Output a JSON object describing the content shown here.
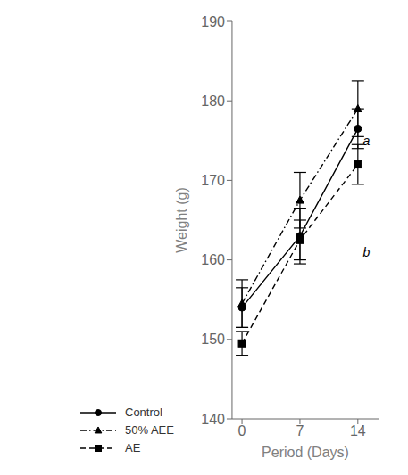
{
  "chart_data": {
    "type": "line",
    "x": [
      0,
      7,
      14
    ],
    "series": [
      {
        "name": "Control",
        "color": "#000000",
        "marker": "circle",
        "line_style": "solid",
        "values": [
          154.0,
          163.0,
          176.5
        ],
        "errors": [
          2.5,
          3.5,
          2.5
        ]
      },
      {
        "name": "50% AEE",
        "color": "#000000",
        "marker": "triangle",
        "line_style": "dashdot",
        "values": [
          154.5,
          167.5,
          179.0
        ],
        "errors": [
          3.0,
          3.5,
          3.5
        ]
      },
      {
        "name": "AE",
        "color": "#000000",
        "marker": "square",
        "line_style": "dashed",
        "values": [
          149.5,
          162.5,
          172.0
        ],
        "errors": [
          1.5,
          2.5,
          2.5
        ]
      }
    ],
    "xlabel": "Period (Days)",
    "ylabel": "Weight (g)",
    "xlim": [
      -1.2,
      16.5
    ],
    "xticks": [
      0,
      7,
      14
    ],
    "ylim": [
      140,
      190
    ],
    "yticks": [
      140,
      150,
      160,
      170,
      180,
      190
    ],
    "annotations": [
      {
        "x": 14.6,
        "y": 175.0,
        "text": "a"
      },
      {
        "x": 14.6,
        "y": 161.0,
        "text": "b"
      }
    ],
    "grid": false,
    "legend": "bottom left"
  }
}
